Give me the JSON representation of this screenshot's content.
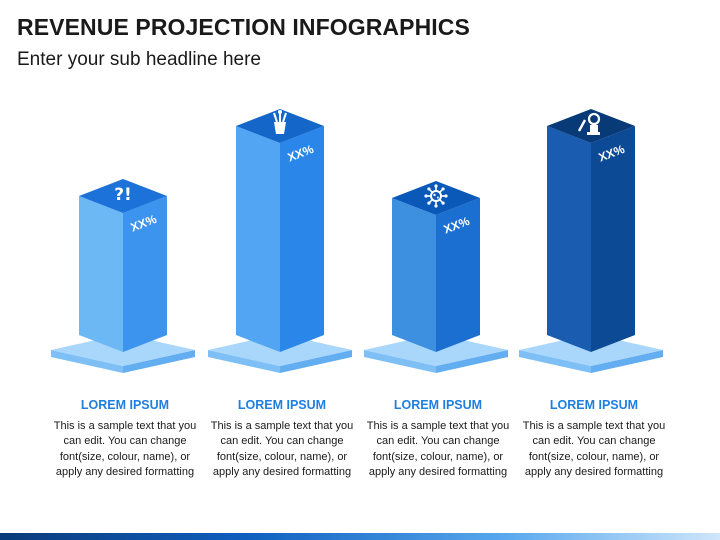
{
  "header": {
    "title": "REVENUE PROJECTION INFOGRAPHICS",
    "subtitle": "Enter your sub headline here"
  },
  "columns": [
    {
      "heading": "LOREM IPSUM",
      "text": "This is a sample text that you can edit. You can change font(size, colour, name), or apply any desired formatting",
      "value_label": "XX%",
      "icon": "question-exclamation-icon",
      "colors": {
        "top": "#1d72d9",
        "left": "#6cb8f5",
        "right": "#3d94ee"
      }
    },
    {
      "heading": "LOREM IPSUM",
      "text": "This is a sample text that you can edit. You can change font(size, colour, name), or apply any desired formatting",
      "value_label": "XX%",
      "icon": "pencil-cup-icon",
      "colors": {
        "top": "#1466c8",
        "left": "#52a5f3",
        "right": "#2b86ea"
      }
    },
    {
      "heading": "LOREM IPSUM",
      "text": "This is a sample text that you can edit. You can change font(size, colour, name), or apply any desired formatting",
      "value_label": "XX%",
      "icon": "virus-icon",
      "colors": {
        "top": "#0a58b8",
        "left": "#3d8fe0",
        "right": "#1a6fd0"
      }
    },
    {
      "heading": "LOREM IPSUM",
      "text": "This is a sample text that you can edit. You can change font(size, colour, name), or apply any desired formatting",
      "value_label": "XX%",
      "icon": "microscope-icon",
      "colors": {
        "top": "#093a78",
        "left": "#1a5db0",
        "right": "#0d4a95"
      }
    }
  ],
  "base_colors": {
    "top": "#a9d6fb",
    "left": "#7ec0f5",
    "right": "#62aef0"
  }
}
